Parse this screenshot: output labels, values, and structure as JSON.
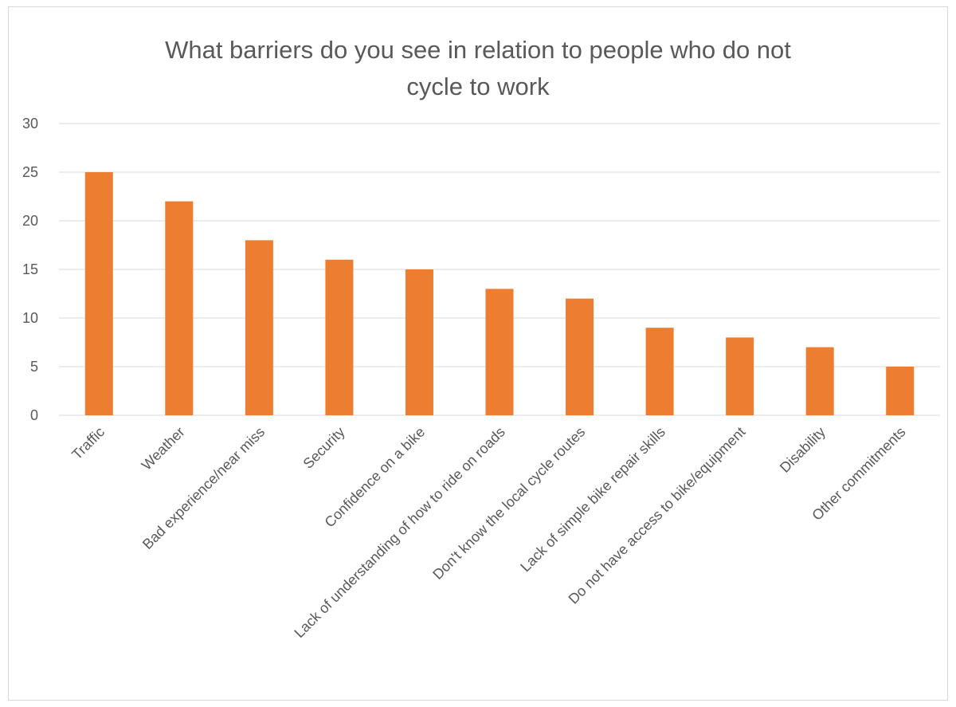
{
  "chart_data": {
    "type": "bar",
    "title_lines": [
      "What barriers do you see in relation to people who do not",
      "cycle to work"
    ],
    "categories": [
      "Traffic",
      "Weather",
      "Bad experience/near miss",
      "Security",
      "Confidence on a bike",
      "Lack of understanding of how to ride on roads",
      "Don't know the local cycle routes",
      "Lack of  simple bike repair skills",
      "Do not have access to bike/equipment",
      "Disability",
      "Other commitments"
    ],
    "values": [
      25,
      22,
      18,
      16,
      15,
      13,
      12,
      9,
      8,
      7,
      5
    ],
    "y_ticks": [
      "0",
      "5",
      "10",
      "15",
      "20",
      "25",
      "30"
    ],
    "ylim": [
      0,
      30
    ],
    "grid": "horizontal",
    "legend": "none",
    "bar_color": "#ED7D31",
    "gridline_color": "#d9d9d9"
  }
}
